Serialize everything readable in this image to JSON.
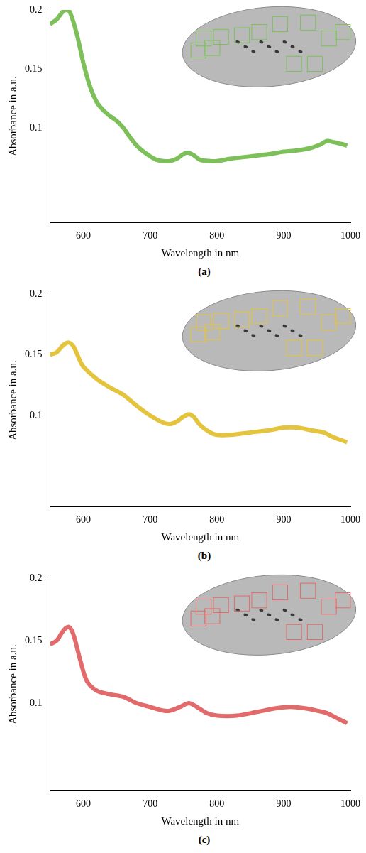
{
  "chart_data": [
    {
      "type": "line",
      "caption": "(a)",
      "x_label": "Wavelength in nm",
      "y_label": "Absorbance in a.u.",
      "grid": false,
      "xlim": [
        550,
        1000
      ],
      "xticks": [
        600,
        700,
        800,
        900,
        1000
      ],
      "ylim": [
        0.02,
        0.2
      ],
      "yticks": [
        0.1,
        0.15,
        0.2
      ],
      "x": [
        550,
        560,
        570,
        575,
        580,
        590,
        600,
        610,
        620,
        630,
        640,
        650,
        660,
        670,
        680,
        690,
        700,
        710,
        720,
        730,
        740,
        750,
        757,
        765,
        775,
        790,
        800,
        820,
        850,
        880,
        900,
        920,
        940,
        955,
        965,
        975,
        990,
        995
      ],
      "series": [
        {
          "color": "#7dc05a",
          "values": [
            0.188,
            0.192,
            0.199,
            0.2,
            0.198,
            0.18,
            0.155,
            0.135,
            0.122,
            0.115,
            0.11,
            0.106,
            0.1,
            0.092,
            0.085,
            0.08,
            0.076,
            0.073,
            0.072,
            0.072,
            0.074,
            0.078,
            0.079,
            0.077,
            0.073,
            0.072,
            0.072,
            0.074,
            0.076,
            0.078,
            0.08,
            0.081,
            0.083,
            0.086,
            0.089,
            0.088,
            0.086,
            0.085
          ]
        }
      ]
    },
    {
      "type": "line",
      "caption": "(b)",
      "x_label": "Wavelength in nm",
      "y_label": "Absorbance in a.u.",
      "grid": false,
      "xlim": [
        550,
        1000
      ],
      "xticks": [
        600,
        700,
        800,
        900,
        1000
      ],
      "ylim": [
        0.025,
        0.2
      ],
      "yticks": [
        0.1,
        0.15,
        0.2
      ],
      "x": [
        550,
        560,
        570,
        578,
        585,
        595,
        600,
        620,
        640,
        660,
        680,
        700,
        720,
        730,
        740,
        750,
        758,
        765,
        775,
        790,
        800,
        820,
        850,
        880,
        900,
        920,
        940,
        960,
        975,
        995
      ],
      "series": [
        {
          "color": "#e3c43c",
          "values": [
            0.15,
            0.152,
            0.158,
            0.16,
            0.157,
            0.145,
            0.14,
            0.13,
            0.123,
            0.117,
            0.108,
            0.1,
            0.094,
            0.093,
            0.095,
            0.099,
            0.101,
            0.099,
            0.092,
            0.086,
            0.084,
            0.084,
            0.086,
            0.088,
            0.09,
            0.09,
            0.088,
            0.086,
            0.082,
            0.078
          ]
        }
      ]
    },
    {
      "type": "line",
      "caption": "(c)",
      "x_label": "Wavelength in nm",
      "y_label": "Absorbance in a.u.",
      "grid": false,
      "xlim": [
        550,
        1000
      ],
      "xticks": [
        600,
        700,
        800,
        900,
        1000
      ],
      "ylim": [
        0.03,
        0.2
      ],
      "yticks": [
        0.1,
        0.15,
        0.2
      ],
      "x": [
        550,
        560,
        570,
        578,
        585,
        595,
        605,
        620,
        640,
        660,
        680,
        700,
        720,
        730,
        745,
        758,
        770,
        785,
        800,
        830,
        860,
        890,
        910,
        930,
        950,
        965,
        980,
        995
      ],
      "series": [
        {
          "color": "#e36a6a",
          "values": [
            0.147,
            0.15,
            0.158,
            0.161,
            0.155,
            0.135,
            0.118,
            0.11,
            0.107,
            0.105,
            0.1,
            0.097,
            0.094,
            0.094,
            0.097,
            0.1,
            0.097,
            0.092,
            0.09,
            0.09,
            0.093,
            0.096,
            0.097,
            0.096,
            0.094,
            0.092,
            0.088,
            0.084
          ]
        }
      ]
    }
  ]
}
